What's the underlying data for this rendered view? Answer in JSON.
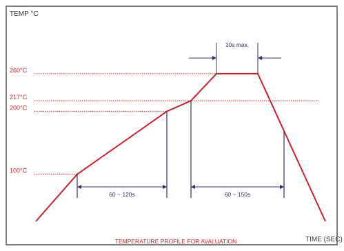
{
  "chart_data": {
    "type": "line",
    "title": "",
    "ylabel": "TEMP °C",
    "xlabel": "TIME (SEC)",
    "caption": "TEMPERATURE PROFILE FOR AVALUATION",
    "y_ticks": [
      {
        "value": 100,
        "label": "100°C"
      },
      {
        "value": 200,
        "label": "200°C"
      },
      {
        "value": 217,
        "label": "217°C"
      },
      {
        "value": 260,
        "label": "260°C"
      }
    ],
    "series": [
      {
        "x": [
          0,
          60,
          190,
          225,
          262,
          322,
          420
        ],
        "y": [
          25,
          100,
          200,
          217,
          260,
          260,
          25
        ]
      }
    ],
    "annotations": [
      {
        "label": "60 ~ 120s",
        "from": 60,
        "to": 190,
        "level": 15
      },
      {
        "label": "60 ~ 150s",
        "from": 225,
        "to": 360,
        "level": 15
      },
      {
        "label": "10s max.",
        "from": 262,
        "to": 322,
        "level": 285
      }
    ],
    "colors": {
      "profile": "#c8202a",
      "guide": "#c8202a",
      "marker": "#2b2f5a",
      "text_red": "#c8202a"
    }
  }
}
